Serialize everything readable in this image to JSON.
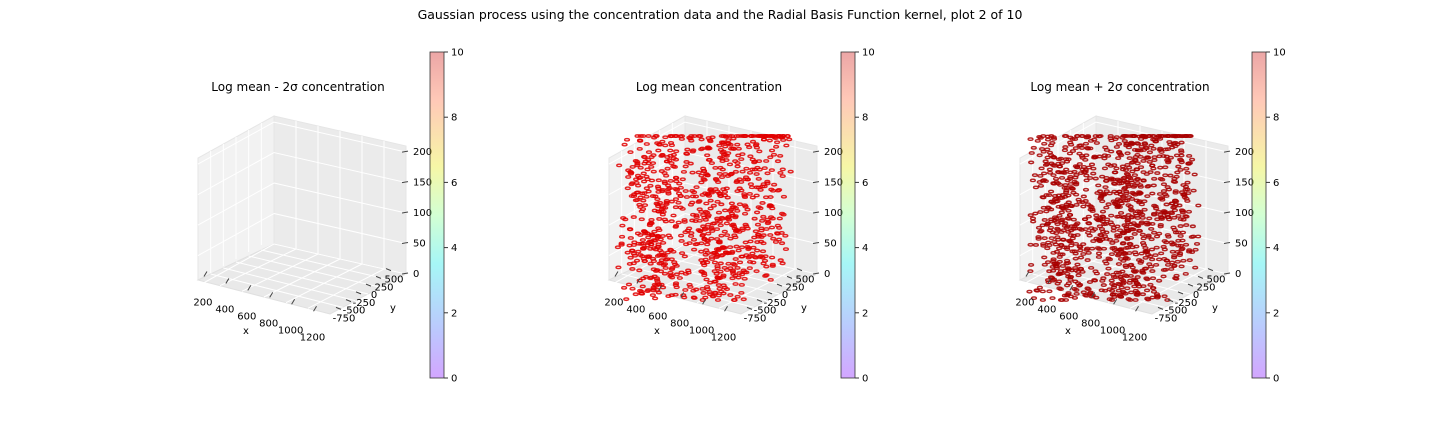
{
  "figure": {
    "title": "Gaussian process using the  concentration data and the Radial Basis Function kernel, plot 2 of 10"
  },
  "chart_data": [
    {
      "type": "scatter",
      "title": "Log mean - 2σ concentration",
      "xlabel": "x",
      "ylabel": "y",
      "zlabel": "",
      "x_ticks": [
        200,
        400,
        600,
        800,
        1000,
        1200
      ],
      "y_ticks": [
        -750,
        -500,
        -250,
        0,
        250,
        500
      ],
      "z_ticks": [
        0,
        50,
        100,
        150,
        200
      ],
      "xlim": [
        100,
        1250
      ],
      "ylim": [
        -900,
        650
      ],
      "zlim": [
        0,
        210
      ],
      "grid": true,
      "points": "none visible",
      "colorbar": {
        "ticks": [
          0,
          2,
          4,
          6,
          8,
          10
        ],
        "range": [
          0,
          10
        ],
        "colormap": "rainbow",
        "alpha": 0.35
      }
    },
    {
      "type": "scatter",
      "title": "Log mean concentration",
      "xlabel": "x",
      "ylabel": "y",
      "zlabel": "",
      "x_ticks": [
        200,
        400,
        600,
        800,
        1000,
        1200
      ],
      "y_ticks": [
        -750,
        -500,
        -250,
        0,
        250,
        500
      ],
      "z_ticks": [
        0,
        50,
        100,
        150,
        200
      ],
      "xlim": [
        100,
        1250
      ],
      "ylim": [
        -900,
        650
      ],
      "zlim": [
        0,
        210
      ],
      "grid": true,
      "point_color": "#e00000",
      "point_value": 10,
      "colorbar": {
        "ticks": [
          0,
          2,
          4,
          6,
          8,
          10
        ],
        "range": [
          0,
          10
        ],
        "colormap": "rainbow",
        "alpha": 0.35
      }
    },
    {
      "type": "scatter",
      "title": "Log mean + 2σ concentration",
      "xlabel": "x",
      "ylabel": "y",
      "zlabel": "",
      "x_ticks": [
        200,
        400,
        600,
        800,
        1000,
        1200
      ],
      "y_ticks": [
        -750,
        -500,
        -250,
        0,
        250,
        500
      ],
      "z_ticks": [
        0,
        50,
        100,
        150,
        200
      ],
      "xlim": [
        100,
        1250
      ],
      "ylim": [
        -900,
        650
      ],
      "zlim": [
        0,
        210
      ],
      "grid": true,
      "point_color": "#a80000",
      "point_value": 10,
      "colorbar": {
        "ticks": [
          0,
          2,
          4,
          6,
          8,
          10
        ],
        "range": [
          0,
          10
        ],
        "colormap": "rainbow",
        "alpha": 0.35
      }
    }
  ]
}
